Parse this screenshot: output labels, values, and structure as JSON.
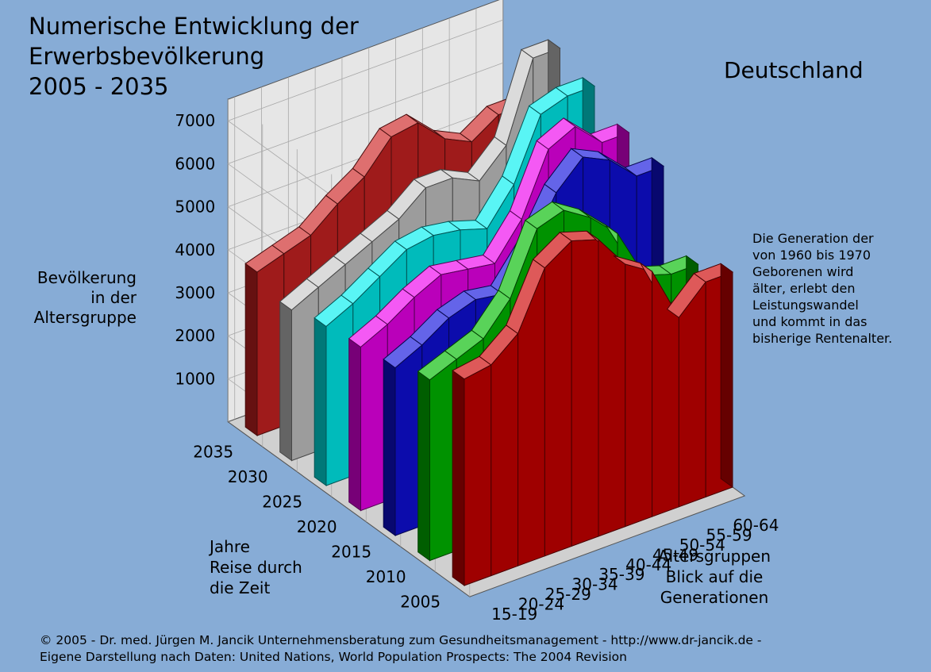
{
  "title_lines": [
    "Numerische Entwicklung der",
    "Erwerbsbevölkerung",
    "2005 - 2035"
  ],
  "country": "Deutschland",
  "ylabel_lines": [
    "Bevölkerung",
    "in der",
    "Altersgruppe"
  ],
  "zlabel_lines": [
    "Jahre",
    "Reise durch",
    "die Zeit"
  ],
  "xlabel_lines": [
    "Altersgruppen",
    "Blick auf die",
    "Generationen"
  ],
  "note_lines": [
    "Die Generation der",
    "von 1960 bis 1970",
    "Geborenen wird",
    "älter, erlebt den",
    "Leistungswandel",
    "und kommt in das",
    "bisherige Rentenalter."
  ],
  "copyright_lines": [
    "© 2005 -  Dr. med. Jürgen M. Jancik Unternehmensberatung zum Gesundheitsmanagement - http://www.dr-jancik.de -",
    "Eigene Darstellung nach Daten: United Nations, World Population Prospects: The 2004 Revision"
  ],
  "chart_data": {
    "type": "area",
    "view": "3d-ribbon",
    "grid": true,
    "categories": [
      "15-19",
      "20-24",
      "25-29",
      "30-34",
      "35-39",
      "40-44",
      "45-49",
      "50-54",
      "55-59",
      "60-64"
    ],
    "yticks": [
      1000,
      2000,
      3000,
      4000,
      5000,
      6000,
      7000
    ],
    "ylim": [
      0,
      7500
    ],
    "series": [
      {
        "name": "2005",
        "color": "#cc0000",
        "values": [
          4800,
          4900,
          5400,
          6700,
          7100,
          6900,
          6100,
          5700,
          4400,
          5000
        ]
      },
      {
        "name": "2010",
        "color": "#00bb00",
        "values": [
          4200,
          4450,
          4700,
          5400,
          6800,
          7000,
          6600,
          6000,
          4800,
          4600
        ]
      },
      {
        "name": "2015",
        "color": "#1010dd",
        "values": [
          3900,
          4200,
          4600,
          4800,
          4700,
          5500,
          6600,
          7200,
          6900,
          6300
        ]
      },
      {
        "name": "2020",
        "color": "#ee00ee",
        "values": [
          3800,
          4100,
          4500,
          4800,
          4700,
          4600,
          5400,
          6800,
          7100,
          6500
        ]
      },
      {
        "name": "2025",
        "color": "#00f0f0",
        "values": [
          3700,
          4000,
          4400,
          4800,
          4900,
          4800,
          4600,
          5400,
          6800,
          7000
        ]
      },
      {
        "name": "2030",
        "color": "#c8c8c8",
        "values": [
          3500,
          3800,
          4100,
          4400,
          4700,
          5200,
          5200,
          4900,
          5500,
          7300
        ]
      },
      {
        "name": "2035",
        "color": "#cc2222",
        "values": [
          3800,
          4000,
          4200,
          4700,
          5100,
          5800,
          5900,
          5300,
          5000,
          5400
        ]
      }
    ]
  }
}
